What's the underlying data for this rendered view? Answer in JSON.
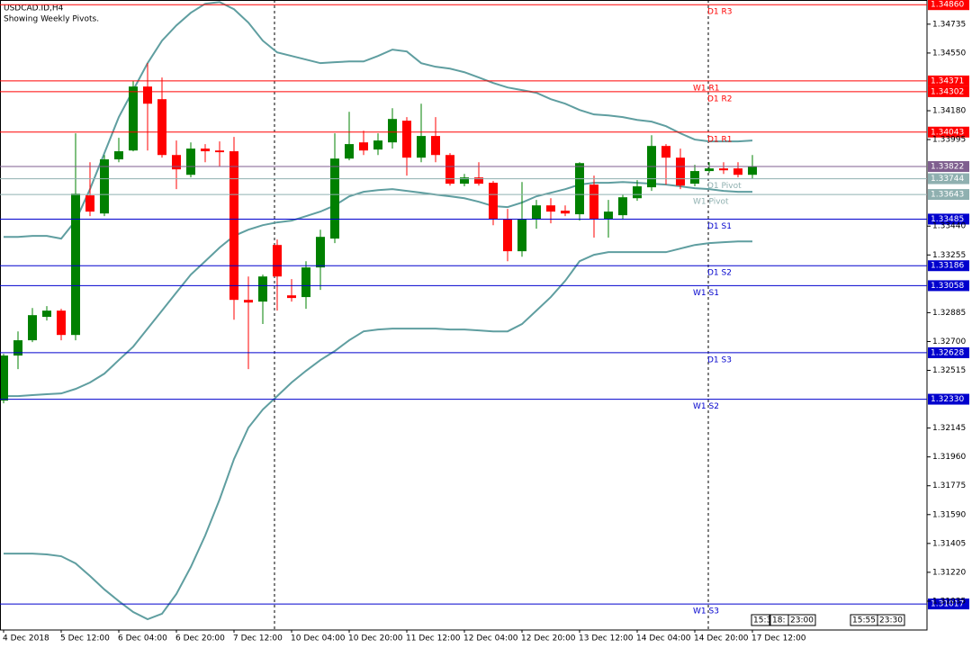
{
  "chart_data": {
    "type": "candlestick",
    "title": "USDCAD.ID,H4",
    "subtitle": "Showing Weekly Pivots.",
    "up_color": "#008000",
    "down_color": "#ff0000",
    "categories": [
      "4 Dec 2018",
      null,
      null,
      null,
      "5 Dec 12:00",
      null,
      null,
      null,
      "6 Dec 04:00",
      null,
      null,
      null,
      "6 Dec 20:00",
      null,
      null,
      null,
      "7 Dec 12:00",
      null,
      null,
      null,
      "10 Dec 04:00",
      null,
      null,
      null,
      "10 Dec 20:00",
      null,
      null,
      null,
      "11 Dec 12:00",
      null,
      null,
      null,
      "12 Dec 04:00",
      null,
      null,
      null,
      "12 Dec 20:00",
      null,
      null,
      null,
      "13 Dec 12:00",
      null,
      null,
      null,
      "14 Dec 04:00",
      null,
      null,
      null,
      "14 Dec 20:00",
      null,
      null,
      null,
      "17 Dec 12:00"
    ],
    "open": [
      1.32321,
      1.3261,
      1.32708,
      1.32858,
      1.32898,
      1.32742,
      1.33637,
      1.33521,
      1.33868,
      1.33925,
      1.34335,
      1.34254,
      1.33896,
      1.33769,
      1.33937,
      1.33925,
      1.3392,
      1.32967,
      1.32956,
      1.33319,
      1.32996,
      1.32985,
      1.33175,
      1.3336,
      1.33873,
      1.33977,
      1.33931,
      1.33977,
      1.34116,
      1.33879,
      1.34018,
      1.33896,
      1.33712,
      1.33752,
      1.33718,
      1.33487,
      1.33279,
      1.33487,
      1.33573,
      1.33539,
      1.33516,
      1.33706,
      1.33487,
      1.3351,
      1.33619,
      1.33689,
      1.33954,
      1.33879,
      1.33712,
      1.33793,
      1.3381,
      1.3381,
      1.33769
    ],
    "high": [
      1.32621,
      1.32765,
      1.32915,
      1.32927,
      1.3291,
      1.34035,
      1.3385,
      1.33896,
      1.34006,
      1.3437,
      1.34485,
      1.34393,
      1.33989,
      1.33977,
      1.33966,
      1.33983,
      1.34012,
      1.33117,
      1.33129,
      1.33354,
      1.331,
      1.33215,
      1.33417,
      1.34035,
      1.34173,
      1.34052,
      1.34035,
      1.34196,
      1.34139,
      1.34225,
      1.34139,
      1.33908,
      1.33775,
      1.3385,
      1.33729,
      1.3355,
      1.33723,
      1.33608,
      1.33619,
      1.33573,
      1.3385,
      1.33764,
      1.33608,
      1.33642,
      1.33735,
      1.34023,
      1.33966,
      1.33937,
      1.33833,
      1.3385,
      1.3385,
      1.3385,
      1.33896
    ],
    "low": [
      1.32304,
      1.32523,
      1.32696,
      1.32835,
      1.32708,
      1.32708,
      1.33504,
      1.33504,
      1.3385,
      1.3392,
      1.33925,
      1.33879,
      1.33677,
      1.33752,
      1.3385,
      1.33821,
      1.3284,
      1.32523,
      1.32812,
      1.32898,
      1.32956,
      1.3291,
      1.33031,
      1.33331,
      1.33862,
      1.33896,
      1.33896,
      1.33937,
      1.33764,
      1.3385,
      1.3385,
      1.337,
      1.33695,
      1.337,
      1.33446,
      1.33215,
      1.33244,
      1.33423,
      1.33458,
      1.33504,
      1.33475,
      1.33366,
      1.33366,
      1.33481,
      1.33602,
      1.33666,
      1.33706,
      1.33677,
      1.33695,
      1.33781,
      1.33775,
      1.33752,
      1.33746
    ],
    "close": [
      1.3261,
      1.32708,
      1.32869,
      1.32898,
      1.32742,
      1.33648,
      1.33533,
      1.33868,
      1.3392,
      1.34335,
      1.34225,
      1.33896,
      1.33804,
      1.33937,
      1.3392,
      1.33914,
      1.32967,
      1.3295,
      1.33117,
      1.33117,
      1.32979,
      1.33175,
      1.33371,
      1.33873,
      1.33966,
      1.33925,
      1.33989,
      1.34127,
      1.33879,
      1.34018,
      1.33896,
      1.33712,
      1.33752,
      1.33712,
      1.33487,
      1.33279,
      1.33487,
      1.33573,
      1.33533,
      1.33521,
      1.33844,
      1.33487,
      1.33533,
      1.33625,
      1.33695,
      1.33954,
      1.33879,
      1.337,
      1.33793,
      1.3381,
      1.33798,
      1.33769,
      1.33822
    ],
    "bands": {
      "color": "#5f9ea0",
      "upper": [
        1.33371,
        1.33371,
        1.33377,
        1.33377,
        1.3336,
        1.33475,
        1.33677,
        1.33908,
        1.34139,
        1.34312,
        1.34485,
        1.34629,
        1.34727,
        1.34808,
        1.34866,
        1.34877,
        1.34831,
        1.34745,
        1.34629,
        1.34554,
        1.34531,
        1.34508,
        1.34485,
        1.34491,
        1.34496,
        1.34496,
        1.34531,
        1.34572,
        1.3456,
        1.34485,
        1.34462,
        1.3445,
        1.34427,
        1.34393,
        1.34358,
        1.34329,
        1.34312,
        1.34295,
        1.34254,
        1.34225,
        1.34185,
        1.34156,
        1.3415,
        1.34139,
        1.34121,
        1.3411,
        1.34081,
        1.34035,
        1.33995,
        1.33983,
        1.33983,
        1.33983,
        1.33989
      ],
      "middle": [
        1.3235,
        1.3235,
        1.32356,
        1.32362,
        1.32367,
        1.32396,
        1.32437,
        1.32494,
        1.32581,
        1.32667,
        1.32783,
        1.32898,
        1.33014,
        1.33129,
        1.33215,
        1.33302,
        1.33377,
        1.33417,
        1.33446,
        1.33464,
        1.33475,
        1.33504,
        1.33533,
        1.33573,
        1.33631,
        1.3366,
        1.33671,
        1.33677,
        1.33666,
        1.33654,
        1.33642,
        1.33631,
        1.33619,
        1.33596,
        1.33568,
        1.33562,
        1.33591,
        1.33631,
        1.33654,
        1.33677,
        1.33706,
        1.33718,
        1.33718,
        1.33723,
        1.33718,
        1.33712,
        1.33706,
        1.33695,
        1.33683,
        1.33677,
        1.33666,
        1.3366,
        1.3366
      ],
      "lower": [
        1.3134,
        1.3134,
        1.3134,
        1.31335,
        1.31323,
        1.31277,
        1.31196,
        1.3111,
        1.31035,
        1.30965,
        1.30919,
        1.30954,
        1.31081,
        1.31254,
        1.31456,
        1.31687,
        1.31946,
        1.32148,
        1.32264,
        1.3235,
        1.32437,
        1.32512,
        1.32581,
        1.32639,
        1.32708,
        1.32765,
        1.32777,
        1.32783,
        1.32783,
        1.32783,
        1.32783,
        1.32777,
        1.32777,
        1.32771,
        1.32765,
        1.32765,
        1.32812,
        1.32898,
        1.32985,
        1.33089,
        1.33215,
        1.33256,
        1.33273,
        1.33273,
        1.33273,
        1.33273,
        1.33273,
        1.33296,
        1.33319,
        1.33331,
        1.33337,
        1.33342,
        1.33342
      ]
    },
    "levels": [
      {
        "name": "D1 R3",
        "value": 1.3486,
        "value_label": "1.34860",
        "color": "#ff0000"
      },
      {
        "name": "W1 R1",
        "value": 1.34371,
        "color": "#ff0000"
      },
      {
        "name": "D1 R2",
        "value": 1.34302,
        "color": "#ff0000"
      },
      {
        "name": "D1 R1",
        "value": 1.34043,
        "color": "#ff0000"
      },
      {
        "name": "D1 Pivot",
        "value": 1.33744,
        "color": "#8fb0b0"
      },
      {
        "name": "W1 Pivot",
        "value": 1.33643,
        "color": "#8fb0b0"
      },
      {
        "name": "D1 S1",
        "value": 1.33485,
        "color": "#0000cd"
      },
      {
        "name": "D1 S2",
        "value": 1.33186,
        "color": "#0000cd"
      },
      {
        "name": "W1 S1",
        "value": 1.33058,
        "color": "#0000cd"
      },
      {
        "name": "D1 S3",
        "value": 1.32628,
        "color": "#0000cd"
      },
      {
        "name": "W1 S2",
        "value": 1.3233,
        "value_label": "1.32330",
        "color": "#0000cd"
      },
      {
        "name": "W1 S3",
        "value": 1.31017,
        "color": "#0000cd"
      }
    ],
    "last_price": {
      "value": 1.33822,
      "color": "#7f5f8f"
    },
    "ylim": [
      1.3085,
      1.3489
    ],
    "yticks": [
      1.34735,
      {
        "value": 1.3455,
        "label": "1.34550"
      },
      {
        "value": 1.3418,
        "label": "1.34180"
      },
      1.33995,
      {
        "value": 1.3344,
        "label": "1.33440"
      },
      1.33255,
      1.32885,
      {
        "value": 1.327,
        "label": "1.32700"
      },
      1.32515,
      1.32145,
      {
        "value": 1.3196,
        "label": "1.31960"
      },
      1.31775,
      {
        "value": 1.3159,
        "label": "1.31590"
      },
      1.31405,
      {
        "value": 1.3122,
        "label": "1.31220"
      },
      1.31035
    ],
    "scroll_labels": [
      "15:3",
      "18:",
      "23:00",
      "15:55",
      "23:30"
    ]
  }
}
